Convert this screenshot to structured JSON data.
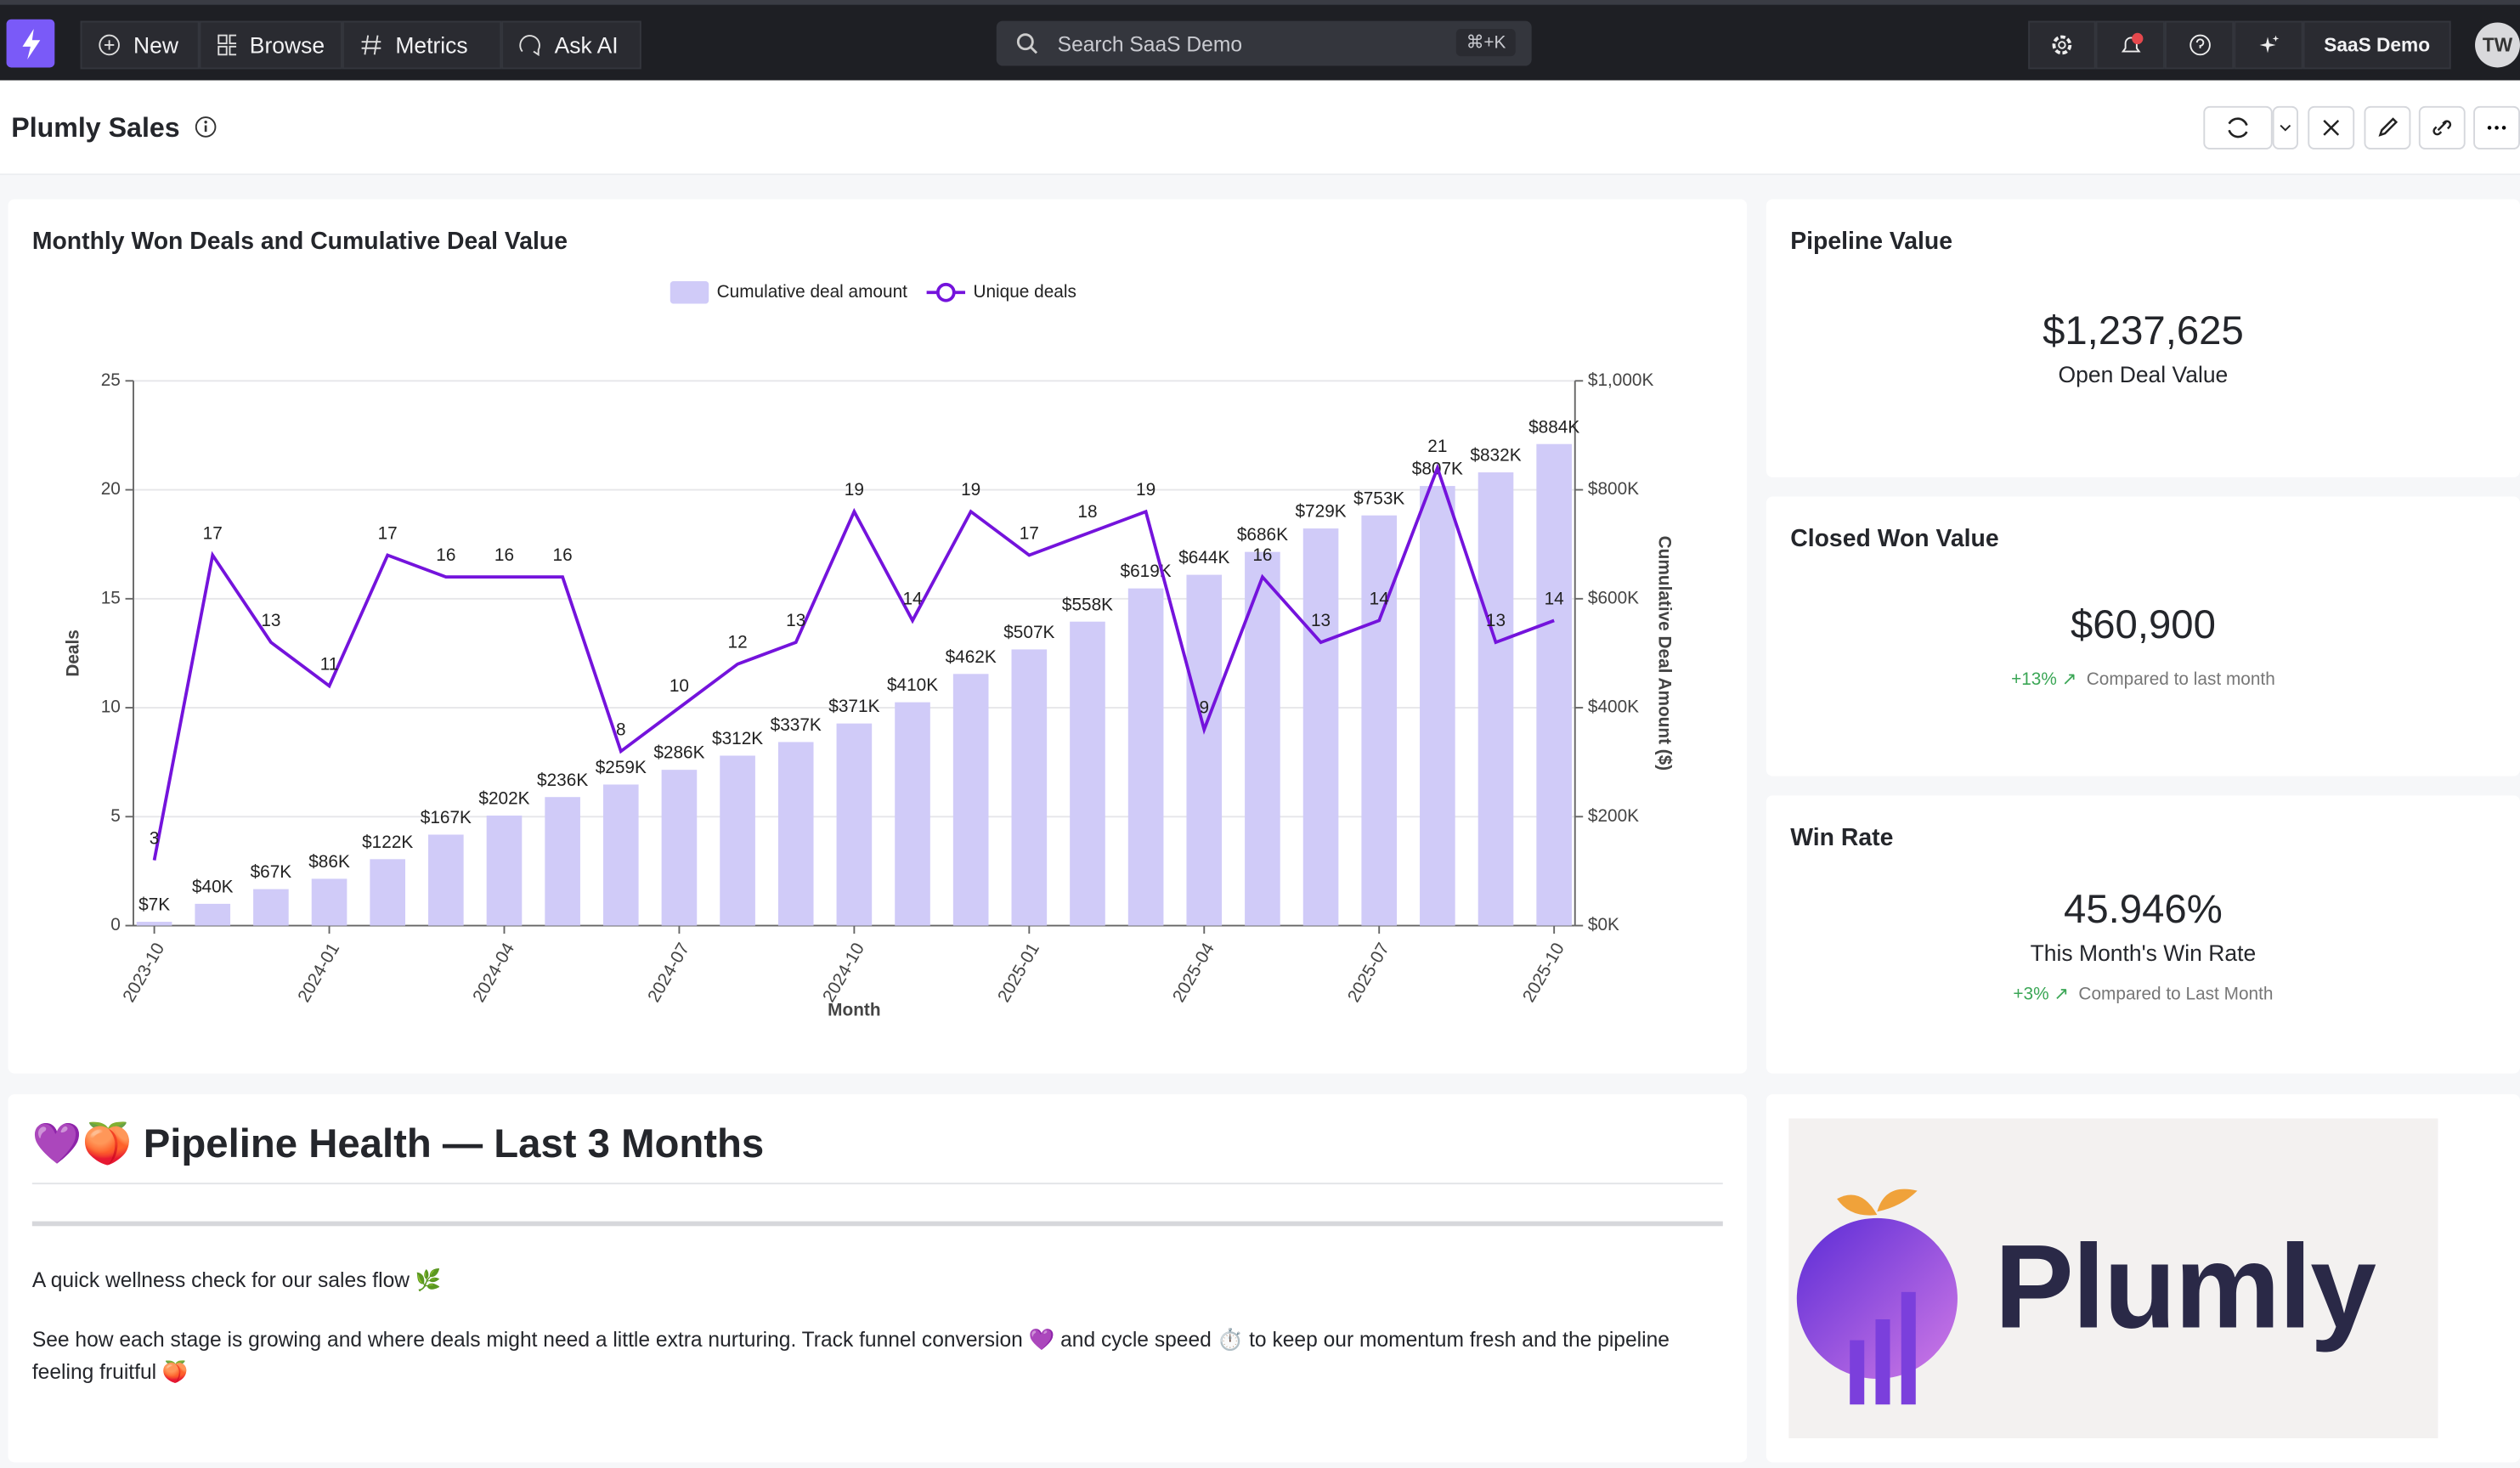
{
  "nav": {
    "items": [
      "New",
      "Browse",
      "Metrics",
      "Ask AI"
    ],
    "search": "Search SaaS Demo",
    "shortcut": "⌘+K",
    "workspace": "SaaS Demo",
    "avatar": "TW"
  },
  "dashboard": {
    "title": "Plumly Sales"
  },
  "chart_data": {
    "type": "combo",
    "title": "Monthly Won Deals and Cumulative Deal Value",
    "categories": [
      "2023-10",
      null,
      null,
      "2024-01",
      null,
      null,
      "2024-04",
      null,
      null,
      "2024-07",
      null,
      null,
      "2024-10",
      null,
      null,
      "2025-01",
      null,
      null,
      "2025-04",
      null,
      null,
      "2025-07",
      null,
      null,
      "2025-10"
    ],
    "series": [
      {
        "name": "Cumulative deal amount",
        "type": "bar",
        "axis": "y2",
        "color": "#d0cbf8",
        "values": [
          7000,
          40000,
          67000,
          86000,
          122000,
          167000,
          202000,
          236000,
          259000,
          286000,
          312000,
          337000,
          371000,
          410000,
          462000,
          507000,
          558000,
          619000,
          644000,
          686000,
          729000,
          753000,
          807000,
          832000,
          884000
        ],
        "value_labels": [
          "$7K",
          "$40K",
          "$67K",
          "$86K",
          "$122K",
          "$167K",
          "$202K",
          "$236K",
          "$259K",
          "$286K",
          "$312K",
          "$337K",
          "$371K",
          "$410K",
          "$462K",
          "$507K",
          "$558K",
          "$619K",
          "$644K",
          "$686K",
          "$729K",
          "$753K",
          "$807K",
          "$832K",
          "$884K"
        ]
      },
      {
        "name": "Unique deals",
        "type": "line",
        "color": "#7413dc",
        "values": [
          3,
          17,
          13,
          11,
          17,
          16,
          16,
          16,
          8,
          10,
          12,
          13,
          19,
          14,
          19,
          17,
          18,
          19,
          9,
          16,
          13,
          14,
          21,
          13,
          14
        ]
      }
    ],
    "ylim": [
      0,
      25
    ],
    "yticks": [
      0,
      5,
      10,
      15,
      20,
      25
    ],
    "y2lim": [
      0,
      1000000
    ],
    "y2ticks": [
      {
        "value": 0,
        "label": "$0K"
      },
      {
        "value": 200000,
        "label": "$200K"
      },
      {
        "value": 400000,
        "label": "$400K"
      },
      {
        "value": 600000,
        "label": "$600K"
      },
      {
        "value": 800000,
        "label": "$800K"
      },
      {
        "value": 1000000,
        "label": "$1,000K"
      }
    ],
    "x_label": "Month",
    "y_label": "Deals",
    "y2_label": "Cumulative Deal Amount ($)",
    "grid": true,
    "legend": "top"
  },
  "cards": [
    {
      "title": "Pipeline Value",
      "value": "$1,237,625",
      "label": "Open Deal Value"
    },
    {
      "title": "Closed Won Value",
      "value": "$60,900",
      "delta": "+13%",
      "comparison": "Compared to last month"
    },
    {
      "title": "Win Rate",
      "value": "45.946%",
      "label": "This Month's Win Rate",
      "delta": "+3%",
      "comparison": "Compared to Last Month"
    }
  ],
  "text_card": {
    "heading": "💜🍑 Pipeline Health — Last 3 Months",
    "paragraphs": [
      "A quick wellness check for our sales flow 🌿",
      "See how each stage is growing and where deals might need a little extra nurturing. Track funnel conversion 💜 and cycle speed ⏱️ to keep our momentum fresh and the pipeline feeling fruitful 🍑"
    ]
  },
  "logo": {
    "wordmark": "Plumly"
  }
}
